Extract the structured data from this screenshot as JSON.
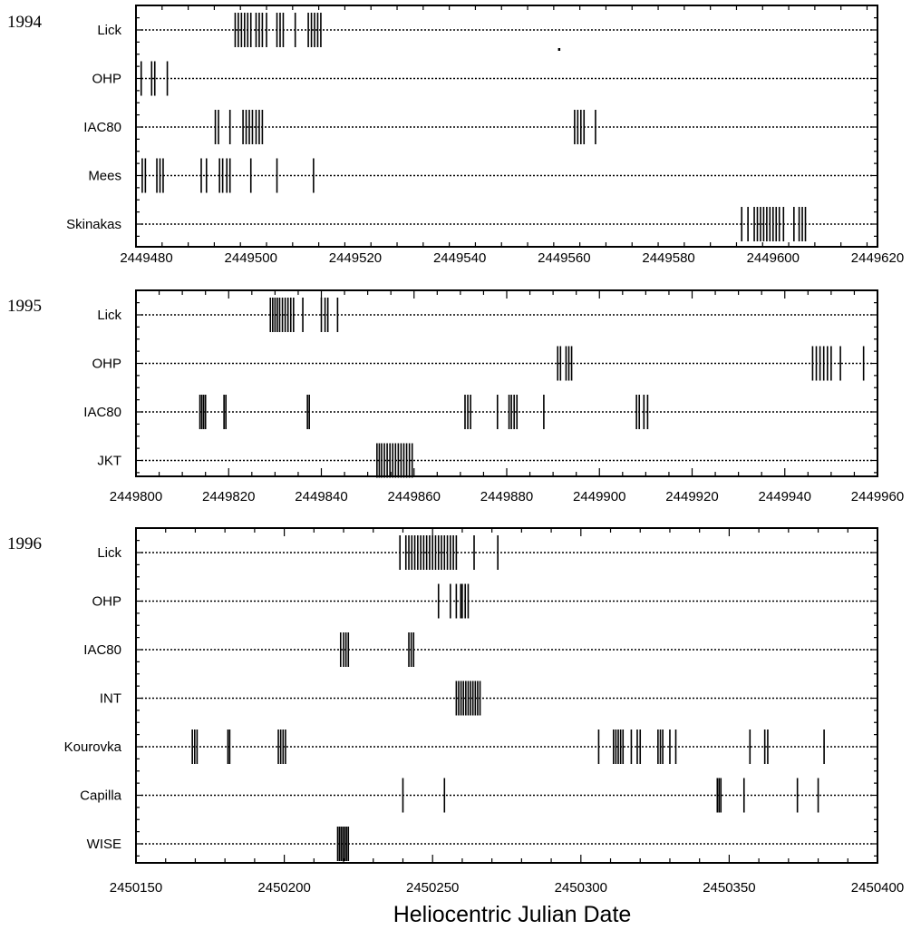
{
  "xlabel": "Heliocentric  Julian  Date",
  "chart_data": [
    {
      "type": "scatter",
      "year_label": "1994",
      "xlim": [
        2449478,
        2449620
      ],
      "ticks": [
        2449480,
        2449500,
        2449520,
        2449540,
        2449560,
        2449580,
        2449600,
        2449620
      ],
      "tick_labels": [
        "2449480",
        "2449500",
        "2449520",
        "2449540",
        "2449560",
        "2449580",
        "2449600",
        "2449620"
      ],
      "observatories": [
        {
          "name": "Lick",
          "dates": [
            2449497,
            2449497.6,
            2449498.2,
            2449498.8,
            2449499.4,
            2449500,
            2449501,
            2449501.6,
            2449502.2,
            2449503,
            2449505,
            2449505.6,
            2449506.2,
            2449508.5,
            2449511,
            2449511.6,
            2449512.2,
            2449512.8,
            2449513.4
          ]
        },
        {
          "name": "OHP",
          "dates": [
            2449479,
            2449481,
            2449481.6,
            2449484
          ]
        },
        {
          "name": "IAC80",
          "dates": [
            2449493.2,
            2449493.8,
            2449496,
            2449498.5,
            2449499.1,
            2449499.7,
            2449500.3,
            2449501,
            2449501.6,
            2449502.2,
            2449562,
            2449562.6,
            2449563.2,
            2449563.8,
            2449566
          ]
        },
        {
          "name": "Mees",
          "dates": [
            2449479.2,
            2449479.8,
            2449482,
            2449482.6,
            2449483.2,
            2449490.5,
            2449491.5,
            2449494,
            2449494.6,
            2449495.4,
            2449496,
            2449500,
            2449505,
            2449512
          ]
        },
        {
          "name": "Skinakas",
          "dates": [
            2449594,
            2449595.2,
            2449596.4,
            2449597,
            2449597.6,
            2449598.2,
            2449598.8,
            2449599.4,
            2449600,
            2449600.6,
            2449601.2,
            2449602,
            2449604,
            2449605,
            2449605.6,
            2449606.2
          ]
        }
      ]
    },
    {
      "type": "scatter",
      "year_label": "1995",
      "xlim": [
        2449800,
        2449960
      ],
      "ticks": [
        2449800,
        2449820,
        2449840,
        2449860,
        2449880,
        2449900,
        2449920,
        2449940,
        2449960
      ],
      "tick_labels": [
        "2449800",
        "2449820",
        "2449840",
        "2449860",
        "2449880",
        "2449900",
        "2449920",
        "2449940",
        "2449960"
      ],
      "observatories": [
        {
          "name": "Lick",
          "dates": [
            2449829,
            2449829.5,
            2449830,
            2449830.5,
            2449831,
            2449831.6,
            2449832.2,
            2449832.8,
            2449833.4,
            2449834,
            2449836,
            2449840,
            2449840.8,
            2449841.4,
            2449843.5
          ]
        },
        {
          "name": "OHP",
          "dates": [
            2449891,
            2449891.6,
            2449892.8,
            2449893.4,
            2449894,
            2449946,
            2449946.8,
            2449947.6,
            2449948.4,
            2449949.2,
            2449950,
            2449952,
            2449957
          ]
        },
        {
          "name": "IAC80",
          "dates": [
            2449813.8,
            2449814.2,
            2449814.6,
            2449815,
            2449819,
            2449819.4,
            2449837,
            2449837.4,
            2449871,
            2449871.6,
            2449872.2,
            2449878,
            2449880.5,
            2449881,
            2449881.6,
            2449882.2,
            2449888,
            2449908,
            2449908.6,
            2449909.6,
            2449910.4
          ]
        },
        {
          "name": "JKT",
          "dates": [
            2449852,
            2449852.5,
            2449853,
            2449853.6,
            2449854.2,
            2449854.8,
            2449855.4,
            2449856,
            2449856.6,
            2449857.2,
            2449857.8,
            2449858.4,
            2449859,
            2449859.6
          ]
        }
      ]
    },
    {
      "type": "scatter",
      "year_label": "1996",
      "xlim": [
        2450150,
        2450400
      ],
      "ticks": [
        2450150,
        2450200,
        2450250,
        2450300,
        2450350,
        2450400
      ],
      "tick_labels": [
        "2450150",
        "2450200",
        "2450250",
        "2450300",
        "2450350",
        "2450400"
      ],
      "observatories": [
        {
          "name": "Lick",
          "dates": [
            2450239,
            2450241,
            2450242,
            2450243,
            2450244,
            2450245,
            2450246,
            2450247,
            2450248,
            2450249,
            2450250,
            2450251,
            2450252,
            2450253,
            2450254,
            2450255,
            2450256,
            2450257,
            2450258,
            2450264,
            2450272
          ]
        },
        {
          "name": "OHP",
          "dates": [
            2450252,
            2450256,
            2450258,
            2450259.5,
            2450260,
            2450261,
            2450262
          ]
        },
        {
          "name": "IAC80",
          "dates": [
            2450219,
            2450220,
            2450220.8,
            2450221.6,
            2450242,
            2450242.8,
            2450243.6
          ]
        },
        {
          "name": "INT",
          "dates": [
            2450258,
            2450258.8,
            2450259.6,
            2450260.4,
            2450261.2,
            2450262,
            2450262.8,
            2450263.6,
            2450264.4,
            2450265.2,
            2450266
          ]
        },
        {
          "name": "Kourovka",
          "dates": [
            2450169,
            2450169.8,
            2450170.6,
            2450181,
            2450181.6,
            2450198,
            2450198.8,
            2450199.6,
            2450200.4,
            2450306,
            2450311,
            2450311.8,
            2450312.6,
            2450313.4,
            2450314.2,
            2450317,
            2450319,
            2450320,
            2450326,
            2450326.8,
            2450327.6,
            2450330,
            2450332,
            2450357,
            2450362,
            2450363,
            2450382
          ]
        },
        {
          "name": "Capilla",
          "dates": [
            2450240,
            2450254,
            2450346,
            2450346.6,
            2450347.2,
            2450355,
            2450373,
            2450380
          ]
        },
        {
          "name": "WISE",
          "dates": [
            2450218,
            2450218.6,
            2450219.2,
            2450219.8,
            2450220.4,
            2450221,
            2450221.6
          ]
        }
      ]
    }
  ]
}
